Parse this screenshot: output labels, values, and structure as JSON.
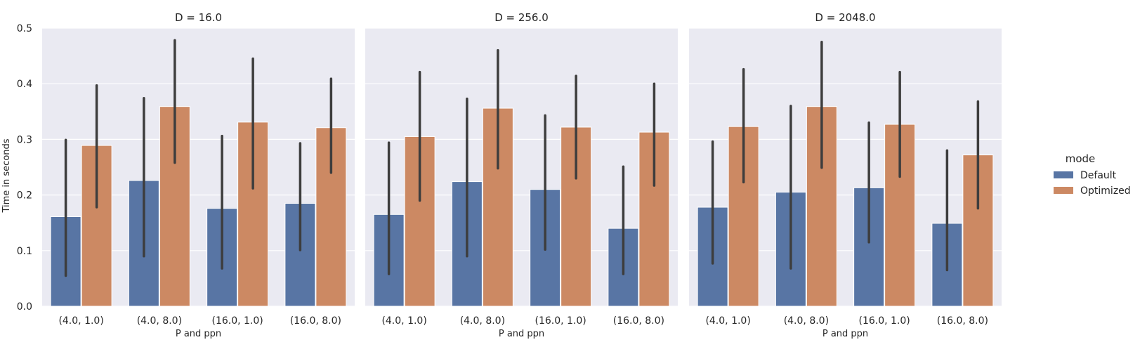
{
  "chart_data": {
    "type": "bar",
    "ylabel": "Time in seconds",
    "xlabel": "P and ppn",
    "ylim": [
      0,
      0.5
    ],
    "yticks": [
      "0.0",
      "0.1",
      "0.2",
      "0.3",
      "0.4",
      "0.5"
    ],
    "categories": [
      "(4.0, 1.0)",
      "(4.0, 8.0)",
      "(16.0, 1.0)",
      "(16.0, 8.0)"
    ],
    "grid": true,
    "legend": {
      "title": "mode",
      "placement": "right",
      "entries": [
        "Default",
        "Optimized"
      ]
    },
    "colors": {
      "Default": "#5875a4",
      "Optimized": "#cc8963",
      "panel_bg": "#eaeaf2",
      "errorbar": "#3d3d3d"
    },
    "panels": [
      {
        "title": "D = 16.0",
        "series": [
          {
            "name": "Default",
            "values": [
              0.161,
              0.226,
              0.176,
              0.185
            ],
            "err_low": [
              0.055,
              0.09,
              0.068,
              0.101
            ],
            "err_high": [
              0.299,
              0.374,
              0.306,
              0.293
            ]
          },
          {
            "name": "Optimized",
            "values": [
              0.289,
              0.359,
              0.331,
              0.321
            ],
            "err_low": [
              0.178,
              0.258,
              0.212,
              0.24
            ],
            "err_high": [
              0.397,
              0.478,
              0.445,
              0.409
            ]
          }
        ]
      },
      {
        "title": "D = 256.0",
        "series": [
          {
            "name": "Default",
            "values": [
              0.165,
              0.224,
              0.21,
              0.14
            ],
            "err_low": [
              0.058,
              0.09,
              0.102,
              0.058
            ],
            "err_high": [
              0.294,
              0.373,
              0.343,
              0.251
            ]
          },
          {
            "name": "Optimized",
            "values": [
              0.305,
              0.356,
              0.322,
              0.313
            ],
            "err_low": [
              0.19,
              0.248,
              0.23,
              0.217
            ],
            "err_high": [
              0.421,
              0.46,
              0.414,
              0.4
            ]
          }
        ]
      },
      {
        "title": "D = 2048.0",
        "series": [
          {
            "name": "Default",
            "values": [
              0.178,
              0.205,
              0.213,
              0.149
            ],
            "err_low": [
              0.077,
              0.068,
              0.115,
              0.065
            ],
            "err_high": [
              0.296,
              0.36,
              0.33,
              0.28
            ]
          },
          {
            "name": "Optimized",
            "values": [
              0.323,
              0.359,
              0.327,
              0.272
            ],
            "err_low": [
              0.223,
              0.249,
              0.233,
              0.176
            ],
            "err_high": [
              0.426,
              0.475,
              0.421,
              0.368
            ]
          }
        ]
      }
    ]
  }
}
